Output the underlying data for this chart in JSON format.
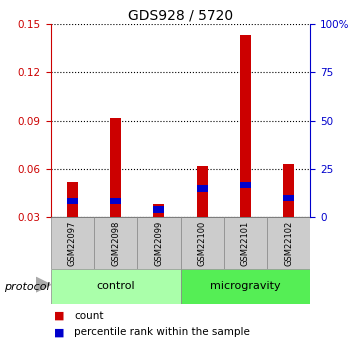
{
  "title": "GDS928 / 5720",
  "samples": [
    "GSM22097",
    "GSM22098",
    "GSM22099",
    "GSM22100",
    "GSM22101",
    "GSM22102"
  ],
  "red_values": [
    0.052,
    0.092,
    0.038,
    0.062,
    0.143,
    0.063
  ],
  "blue_values": [
    0.04,
    0.04,
    0.035,
    0.048,
    0.05,
    0.042
  ],
  "ylim_left": [
    0.03,
    0.15
  ],
  "ylim_right": [
    0,
    100
  ],
  "yticks_left": [
    0.03,
    0.06,
    0.09,
    0.12,
    0.15
  ],
  "yticks_right": [
    0,
    25,
    50,
    75,
    100
  ],
  "ytick_labels_right": [
    "0",
    "25",
    "50",
    "75",
    "100%"
  ],
  "left_color": "#cc0000",
  "right_color": "#0000cc",
  "bar_red": "#cc0000",
  "bar_blue": "#0000cc",
  "groups": [
    {
      "label": "control",
      "indices": [
        0,
        1,
        2
      ],
      "color": "#aaffaa"
    },
    {
      "label": "microgravity",
      "indices": [
        3,
        4,
        5
      ],
      "color": "#55ee55"
    }
  ],
  "protocol_label": "protocol",
  "legend_items": [
    {
      "label": "count",
      "color": "#cc0000"
    },
    {
      "label": "percentile rank within the sample",
      "color": "#0000cc"
    }
  ],
  "bar_width": 0.25,
  "sample_box_color": "#cccccc",
  "background_color": "#ffffff"
}
